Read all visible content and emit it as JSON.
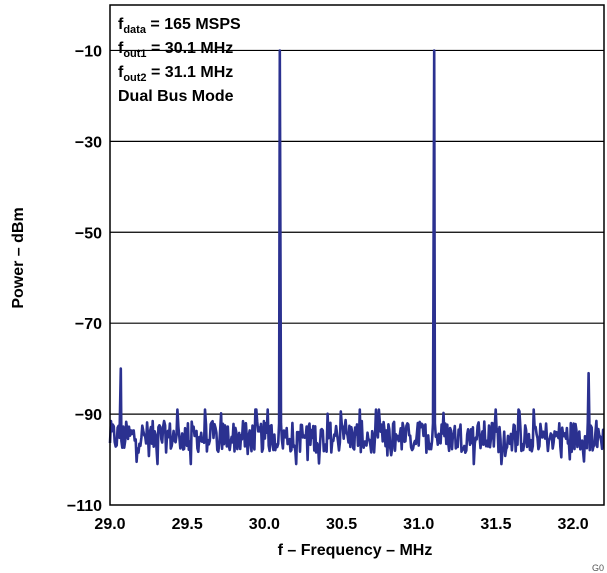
{
  "chart_data": {
    "type": "line",
    "title": "",
    "xlabel": "f – Frequency – MHz",
    "ylabel": "Power – dBm",
    "xlim": [
      29.0,
      32.2
    ],
    "ylim": [
      -110,
      0
    ],
    "xticks": [
      29.0,
      29.5,
      30.0,
      30.5,
      31.0,
      31.5,
      32.0
    ],
    "xtick_labels": [
      "29.0",
      "29.5",
      "30.0",
      "30.5",
      "31.0",
      "31.5",
      "32.0"
    ],
    "yticks": [
      -10,
      -30,
      -50,
      -70,
      -90,
      -110
    ],
    "ytick_labels": [
      "−10",
      "−30",
      "−50",
      "−70",
      "−90",
      "−110"
    ],
    "grid": "horizontal",
    "line_color": "#2b3190",
    "annotations": [
      {
        "main": "f",
        "sub": "data",
        "rest": " = 165 MSPS"
      },
      {
        "main": "f",
        "sub": "out1",
        "rest": " = 30.1 MHz"
      },
      {
        "main": "f",
        "sub": "out2",
        "rest": " = 31.1 MHz"
      },
      {
        "main": "Dual Bus Mode",
        "sub": "",
        "rest": ""
      }
    ],
    "series": [
      {
        "noise_floor_dbm": [
          -101,
          -89
        ],
        "spurs": [
          {
            "x": 29.07,
            "y": -80
          },
          {
            "x": 32.1,
            "y": -81
          }
        ],
        "tones": [
          {
            "x": 30.1,
            "y": -10
          },
          {
            "x": 31.1,
            "y": -10
          }
        ]
      }
    ]
  },
  "footnote": "G0"
}
